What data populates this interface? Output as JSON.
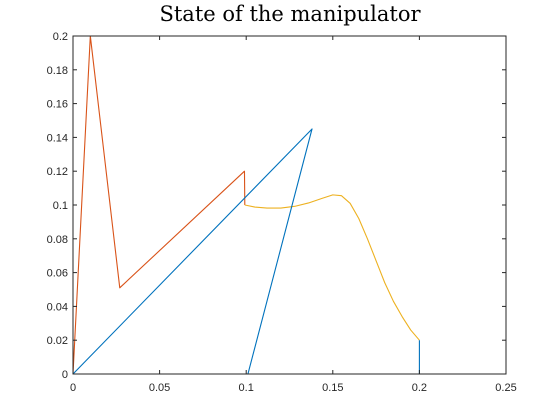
{
  "chart_data": {
    "type": "line",
    "title": "State of the manipulator",
    "xlabel": "",
    "ylabel": "",
    "xlim": [
      0,
      0.25
    ],
    "ylim": [
      0,
      0.2
    ],
    "xticks": [
      0,
      0.05,
      0.1,
      0.15,
      0.2,
      0.25
    ],
    "xtick_labels": [
      "0",
      "0.05",
      "0.1",
      "0.15",
      "0.2",
      "0.25"
    ],
    "yticks": [
      0,
      0.02,
      0.04,
      0.06,
      0.08,
      0.1,
      0.12,
      0.14,
      0.16,
      0.18,
      0.2
    ],
    "ytick_labels": [
      "0",
      "0.02",
      "0.04",
      "0.06",
      "0.08",
      "0.1",
      "0.12",
      "0.14",
      "0.16",
      "0.18",
      "0.2"
    ],
    "grid": false,
    "legend": "none",
    "series": [
      {
        "color": "#D95319",
        "x": [
          0,
          0.01,
          0.027,
          0.099,
          0.099,
          0.0992
        ],
        "y": [
          0,
          0.2,
          0.051,
          0.12,
          0.12,
          0.1
        ]
      },
      {
        "color": "#EDB120",
        "x": [
          0.0992,
          0.105,
          0.112,
          0.12,
          0.128,
          0.136,
          0.144,
          0.15,
          0.155,
          0.16,
          0.165,
          0.17,
          0.175,
          0.18,
          0.185,
          0.19,
          0.195,
          0.2
        ],
        "y": [
          0.1,
          0.0988,
          0.0982,
          0.0982,
          0.0992,
          0.1012,
          0.104,
          0.106,
          0.1055,
          0.101,
          0.092,
          0.08,
          0.067,
          0.054,
          0.043,
          0.034,
          0.026,
          0.02
        ]
      },
      {
        "color": "#0072BD",
        "x": [
          0,
          0.138,
          0.101,
          0.2,
          0.2
        ],
        "y": [
          0,
          0.145,
          0,
          0,
          0.02
        ]
      }
    ]
  }
}
